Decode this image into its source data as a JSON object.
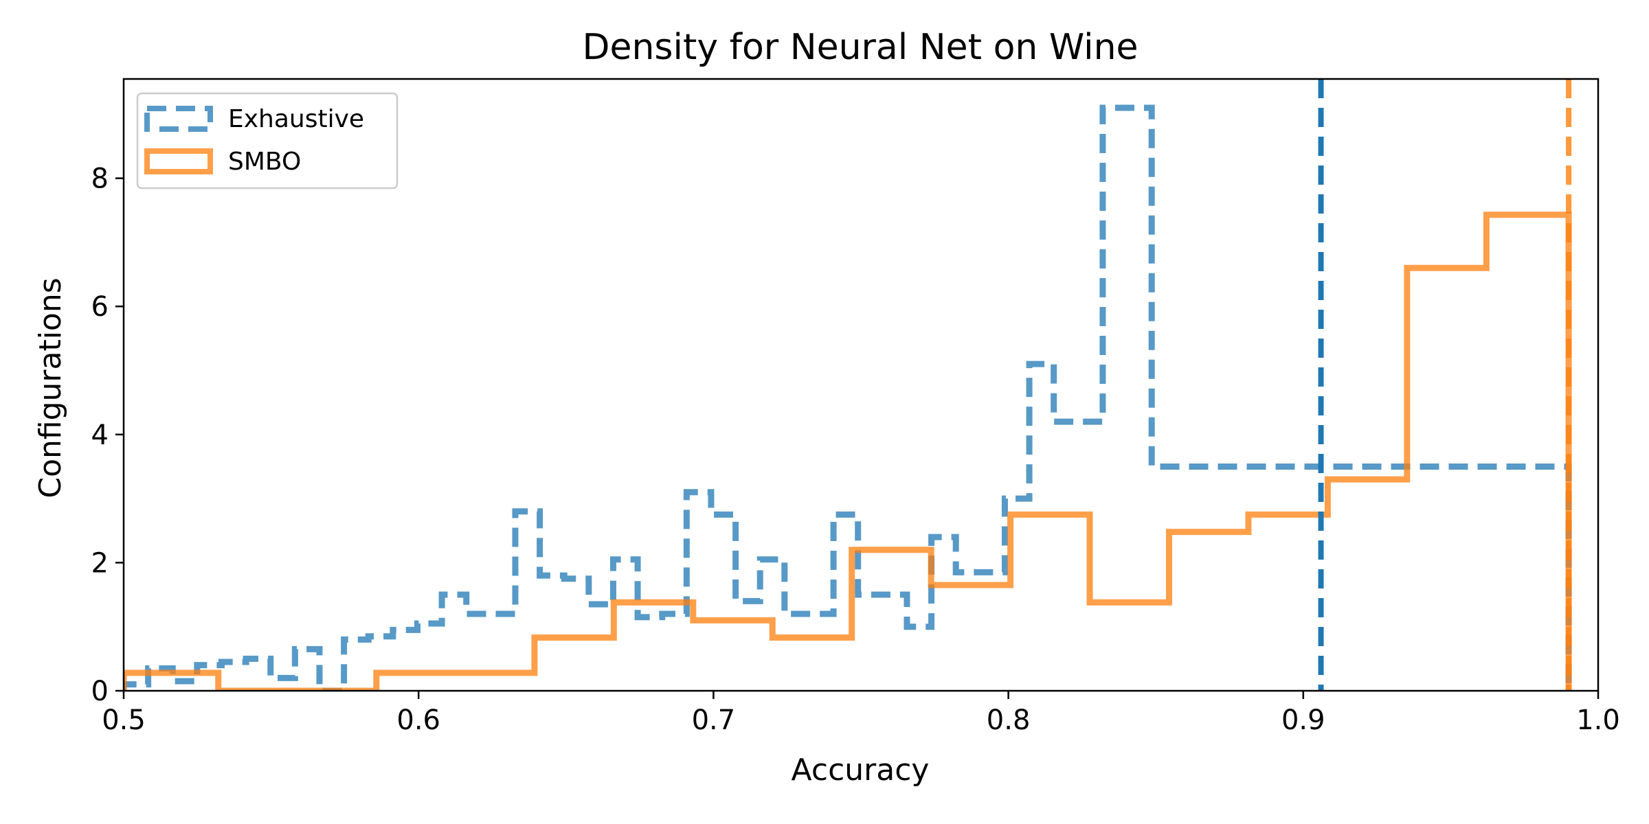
{
  "chart_data": {
    "type": "histogram",
    "title": "Density for Neural Net on Wine",
    "xlabel": "Accuracy",
    "ylabel": "Configurations",
    "xlim": [
      0.5,
      1.0
    ],
    "ylim": [
      0,
      9.55
    ],
    "xticks": [
      0.5,
      0.6,
      0.7,
      0.8,
      0.9,
      1.0
    ],
    "xtick_labels": [
      "0.5",
      "0.6",
      "0.7",
      "0.8",
      "0.9",
      "1.0"
    ],
    "yticks": [
      0,
      2,
      4,
      6,
      8
    ],
    "ytick_labels": [
      "0",
      "2",
      "4",
      "6",
      "8"
    ],
    "grid": false,
    "legend_position": "upper-left",
    "series": [
      {
        "name": "Exhaustive",
        "style": "dashed",
        "color": "#1f77b4",
        "edges": [
          0.5,
          0.5083,
          0.5166,
          0.5249,
          0.5332,
          0.5415,
          0.5498,
          0.5581,
          0.5664,
          0.5747,
          0.583,
          0.5913,
          0.5996,
          0.6079,
          0.6162,
          0.6245,
          0.6328,
          0.6411,
          0.6494,
          0.6577,
          0.666,
          0.6743,
          0.6826,
          0.6909,
          0.6992,
          0.7075,
          0.7158,
          0.7241,
          0.7324,
          0.7407,
          0.749,
          0.7573,
          0.7656,
          0.7739,
          0.7822,
          0.7905,
          0.7988,
          0.8071,
          0.8154,
          0.8237,
          0.832,
          0.8403,
          0.8486,
          0.8569,
          0.8652,
          0.8735,
          0.8818,
          0.8901,
          0.8984,
          0.9067,
          0.915,
          0.9233,
          0.9316,
          0.9399,
          0.9482,
          0.9565,
          0.9648,
          0.9731,
          0.9814,
          0.99
        ],
        "values": [
          0.1,
          0.35,
          0.15,
          0.4,
          0.45,
          0.5,
          0.2,
          0.65,
          0.0,
          0.8,
          0.85,
          0.95,
          1.05,
          1.5,
          1.2,
          1.2,
          2.8,
          1.8,
          1.75,
          1.35,
          2.05,
          1.15,
          1.2,
          3.1,
          2.75,
          1.4,
          2.05,
          1.2,
          1.2,
          2.75,
          1.5,
          1.5,
          1.0,
          2.4,
          1.85,
          1.85,
          3.0,
          5.1,
          4.2,
          4.2,
          9.1,
          9.1,
          3.5,
          3.5,
          3.5,
          3.5,
          3.5,
          3.5,
          3.5,
          3.5,
          3.5,
          3.5,
          3.5,
          3.5,
          3.5,
          3.5,
          3.5,
          3.5,
          3.5
        ]
      },
      {
        "name": "SMBO",
        "style": "solid",
        "color": "#ff7f0e",
        "edges": [
          0.5,
          0.5321,
          0.5857,
          0.6393,
          0.6662,
          0.6931,
          0.72,
          0.7469,
          0.7738,
          0.8007,
          0.8276,
          0.8545,
          0.8814,
          0.9083,
          0.9352,
          0.9621,
          0.99
        ],
        "values": [
          0.28,
          0.0,
          0.28,
          0.83,
          1.38,
          1.1,
          0.83,
          2.2,
          1.65,
          2.75,
          1.38,
          2.48,
          2.75,
          3.3,
          6.6,
          7.43
        ]
      }
    ],
    "vlines": [
      {
        "x": 0.906,
        "style": "dashed",
        "color": "#1f77b4"
      },
      {
        "x": 0.99,
        "style": "dashed",
        "color": "#ff7f0e"
      }
    ]
  }
}
